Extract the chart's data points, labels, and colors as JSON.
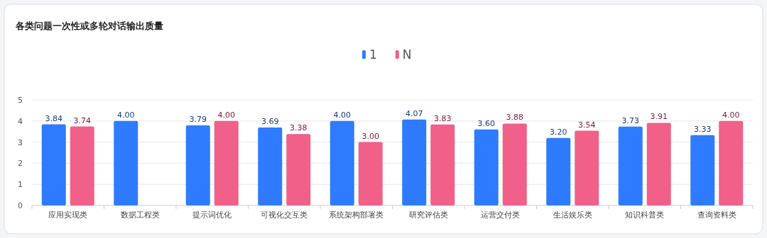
{
  "chart_data": {
    "type": "bar",
    "title": "各类问题一次性或多轮对话输出质量",
    "categories": [
      "应用实现类",
      "数据工程类",
      "提示词优化",
      "可视化交互类",
      "系统架构部署类",
      "研究评估类",
      "运营交付类",
      "生活娱乐类",
      "知识科普类",
      "查询资料类"
    ],
    "series": [
      {
        "name": "1",
        "color": "#2e7bff",
        "values": [
          3.84,
          4.0,
          3.79,
          3.69,
          4.0,
          4.07,
          3.6,
          3.2,
          3.73,
          3.33
        ],
        "value_labels": [
          "3.84",
          "4.00",
          "3.79",
          "3.69",
          "4.00",
          "4.07",
          "3.60",
          "3.20",
          "3.73",
          "3.33"
        ]
      },
      {
        "name": "N",
        "color": "#f06088",
        "values": [
          3.74,
          null,
          4.0,
          3.38,
          3.0,
          3.83,
          3.88,
          3.54,
          3.91,
          4.0
        ],
        "value_labels": [
          "3.74",
          null,
          "4.00",
          "3.38",
          "3.00",
          "3.83",
          "3.88",
          "3.54",
          "3.91",
          "4.00"
        ]
      }
    ],
    "ylim": [
      0,
      5
    ],
    "yticks": [
      0,
      1,
      2,
      3,
      4,
      5
    ],
    "grid": "y",
    "legend": "top"
  }
}
